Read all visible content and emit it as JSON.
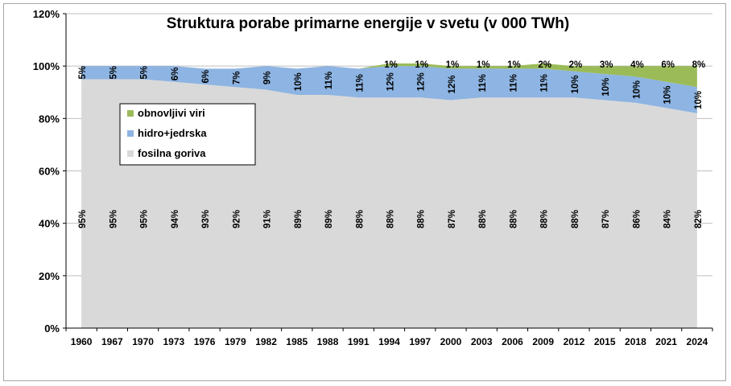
{
  "chart_data": {
    "type": "area",
    "stacked": true,
    "title": "Struktura porabe primarne energije v svetu (v 000 TWh)",
    "categories": [
      "1960",
      "1967",
      "1970",
      "1973",
      "1976",
      "1979",
      "1982",
      "1985",
      "1988",
      "1991",
      "1994",
      "1997",
      "2000",
      "2003",
      "2006",
      "2009",
      "2012",
      "2015",
      "2018",
      "2021",
      "2024"
    ],
    "y_ticks": [
      "0%",
      "20%",
      "40%",
      "60%",
      "80%",
      "100%",
      "120%"
    ],
    "ylim": [
      0,
      120
    ],
    "legend_position": "left",
    "series": [
      {
        "name": "fosilna goriva",
        "color": "#d9d9d9",
        "values": [
          95,
          95,
          95,
          94,
          93,
          92,
          91,
          89,
          89,
          88,
          88,
          88,
          87,
          88,
          88,
          88,
          88,
          87,
          86,
          84,
          82
        ],
        "labels": [
          "95%",
          "95%",
          "95%",
          "94%",
          "93%",
          "92%",
          "91%",
          "89%",
          "89%",
          "88%",
          "88%",
          "88%",
          "87%",
          "88%",
          "88%",
          "88%",
          "88%",
          "87%",
          "86%",
          "84%",
          "82%"
        ]
      },
      {
        "name": "hidro+jedrska",
        "color": "#8db4e2",
        "values": [
          5,
          5,
          5,
          6,
          6,
          7,
          9,
          10,
          11,
          11,
          12,
          12,
          12,
          11,
          11,
          11,
          10,
          10,
          10,
          10,
          10
        ],
        "labels": [
          "5%",
          "5%",
          "5%",
          "6%",
          "6%",
          "7%",
          "9%",
          "10%",
          "11%",
          "11%",
          "12%",
          "12%",
          "12%",
          "11%",
          "11%",
          "11%",
          "10%",
          "10%",
          "10%",
          "10%",
          "10%"
        ]
      },
      {
        "name": "obnovljivi viri",
        "color": "#9bbb59",
        "values": [
          0,
          0,
          0,
          0,
          0,
          0,
          0,
          0,
          0,
          0,
          1,
          1,
          1,
          1,
          1,
          2,
          2,
          3,
          4,
          6,
          8
        ],
        "labels": [
          "",
          "",
          "",
          "",
          "",
          "",
          "",
          "",
          "",
          "",
          "1%",
          "1%",
          "1%",
          "1%",
          "1%",
          "2%",
          "2%",
          "3%",
          "4%",
          "6%",
          "8%"
        ]
      }
    ]
  }
}
